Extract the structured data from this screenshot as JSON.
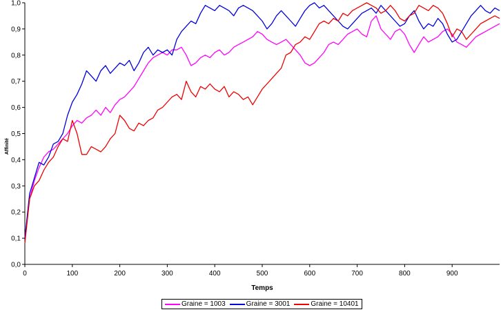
{
  "chart_data": {
    "type": "line",
    "title": "",
    "xlabel": "Temps",
    "ylabel": "Affinité",
    "xlim": [
      0,
      1000
    ],
    "ylim": [
      0,
      1
    ],
    "x_ticks": [
      0,
      100,
      200,
      300,
      400,
      500,
      600,
      700,
      800,
      900
    ],
    "x_tick_labels": [
      "0",
      "100",
      "200",
      "300",
      "400",
      "500",
      "600",
      "700",
      "800",
      "900"
    ],
    "y_ticks": [
      0,
      0.1,
      0.2,
      0.3,
      0.4,
      0.5,
      0.6,
      0.7,
      0.8,
      0.9,
      1.0
    ],
    "y_tick_labels": [
      "0,0",
      "0,1",
      "0,2",
      "0,3",
      "0,4",
      "0,5",
      "0,6",
      "0,7",
      "0,8",
      "0,9",
      "1,0"
    ],
    "grid": false,
    "legend_position": "bottom",
    "series": [
      {
        "name": "Graine = 1003",
        "color": "#ff00ff",
        "x": [
          0,
          10,
          20,
          30,
          40,
          50,
          60,
          70,
          80,
          90,
          100,
          110,
          120,
          130,
          140,
          150,
          160,
          170,
          180,
          190,
          200,
          210,
          220,
          230,
          240,
          250,
          260,
          270,
          280,
          290,
          300,
          310,
          320,
          330,
          340,
          350,
          360,
          370,
          380,
          390,
          400,
          410,
          420,
          430,
          440,
          450,
          460,
          470,
          480,
          490,
          500,
          510,
          520,
          530,
          540,
          550,
          560,
          570,
          580,
          590,
          600,
          610,
          620,
          630,
          640,
          650,
          660,
          670,
          680,
          690,
          700,
          710,
          720,
          730,
          740,
          750,
          760,
          770,
          780,
          790,
          800,
          810,
          820,
          830,
          840,
          850,
          860,
          870,
          880,
          890,
          900,
          910,
          920,
          930,
          940,
          950,
          960,
          970,
          980,
          990,
          1000
        ],
        "values": [
          0.1,
          0.25,
          0.32,
          0.37,
          0.41,
          0.43,
          0.44,
          0.46,
          0.48,
          0.5,
          0.53,
          0.55,
          0.54,
          0.56,
          0.57,
          0.59,
          0.57,
          0.6,
          0.58,
          0.61,
          0.63,
          0.64,
          0.66,
          0.68,
          0.71,
          0.74,
          0.77,
          0.79,
          0.8,
          0.81,
          0.8,
          0.82,
          0.82,
          0.83,
          0.8,
          0.76,
          0.77,
          0.79,
          0.8,
          0.79,
          0.81,
          0.82,
          0.8,
          0.81,
          0.83,
          0.84,
          0.85,
          0.86,
          0.87,
          0.89,
          0.88,
          0.86,
          0.85,
          0.84,
          0.85,
          0.86,
          0.84,
          0.82,
          0.8,
          0.77,
          0.76,
          0.77,
          0.79,
          0.81,
          0.84,
          0.85,
          0.84,
          0.86,
          0.88,
          0.89,
          0.9,
          0.88,
          0.87,
          0.93,
          0.95,
          0.9,
          0.88,
          0.86,
          0.89,
          0.9,
          0.88,
          0.84,
          0.81,
          0.84,
          0.87,
          0.85,
          0.86,
          0.87,
          0.89,
          0.9,
          0.88,
          0.85,
          0.84,
          0.83,
          0.85,
          0.87,
          0.88,
          0.89,
          0.9,
          0.91,
          0.92
        ]
      },
      {
        "name": "Graine = 3001",
        "color": "#0000dd",
        "x": [
          0,
          10,
          20,
          30,
          40,
          50,
          60,
          70,
          80,
          90,
          100,
          110,
          120,
          130,
          140,
          150,
          160,
          170,
          180,
          190,
          200,
          210,
          220,
          230,
          240,
          250,
          260,
          270,
          280,
          290,
          300,
          310,
          320,
          330,
          340,
          350,
          360,
          370,
          380,
          390,
          400,
          410,
          420,
          430,
          440,
          450,
          460,
          470,
          480,
          490,
          500,
          510,
          520,
          530,
          540,
          550,
          560,
          570,
          580,
          590,
          600,
          610,
          620,
          630,
          640,
          650,
          660,
          670,
          680,
          690,
          700,
          710,
          720,
          730,
          740,
          750,
          760,
          770,
          780,
          790,
          800,
          810,
          820,
          830,
          840,
          850,
          860,
          870,
          880,
          890,
          900,
          910,
          920,
          930,
          940,
          950,
          960,
          970,
          980,
          990,
          1000
        ],
        "values": [
          0.1,
          0.27,
          0.33,
          0.39,
          0.38,
          0.41,
          0.46,
          0.47,
          0.5,
          0.57,
          0.62,
          0.65,
          0.69,
          0.74,
          0.72,
          0.7,
          0.74,
          0.76,
          0.73,
          0.75,
          0.77,
          0.76,
          0.78,
          0.74,
          0.77,
          0.81,
          0.83,
          0.8,
          0.82,
          0.81,
          0.82,
          0.8,
          0.86,
          0.89,
          0.91,
          0.93,
          0.92,
          0.96,
          0.99,
          0.98,
          0.97,
          0.99,
          0.98,
          0.97,
          0.95,
          0.98,
          0.99,
          0.98,
          0.97,
          0.95,
          0.93,
          0.9,
          0.92,
          0.95,
          0.97,
          0.95,
          0.93,
          0.91,
          0.94,
          0.97,
          0.99,
          1.0,
          0.98,
          0.99,
          0.97,
          0.95,
          0.93,
          0.91,
          0.9,
          0.92,
          0.94,
          0.96,
          0.97,
          0.98,
          0.96,
          0.99,
          0.97,
          0.95,
          0.93,
          0.91,
          0.92,
          0.95,
          0.97,
          0.93,
          0.9,
          0.92,
          0.91,
          0.94,
          0.92,
          0.88,
          0.85,
          0.86,
          0.89,
          0.92,
          0.95,
          0.97,
          0.99,
          0.97,
          0.96,
          0.98,
          0.97
        ]
      },
      {
        "name": "Graine = 10401",
        "color": "#ee0000",
        "x": [
          0,
          10,
          20,
          30,
          40,
          50,
          60,
          70,
          80,
          90,
          100,
          110,
          120,
          130,
          140,
          150,
          160,
          170,
          180,
          190,
          200,
          210,
          220,
          230,
          240,
          250,
          260,
          270,
          280,
          290,
          300,
          310,
          320,
          330,
          340,
          350,
          360,
          370,
          380,
          390,
          400,
          410,
          420,
          430,
          440,
          450,
          460,
          470,
          480,
          490,
          500,
          510,
          520,
          530,
          540,
          550,
          560,
          570,
          580,
          590,
          600,
          610,
          620,
          630,
          640,
          650,
          660,
          670,
          680,
          690,
          700,
          710,
          720,
          730,
          740,
          750,
          760,
          770,
          780,
          790,
          800,
          810,
          820,
          830,
          840,
          850,
          860,
          870,
          880,
          890,
          900,
          910,
          920,
          930,
          940,
          950,
          960,
          970,
          980,
          990,
          1000
        ],
        "values": [
          0.08,
          0.25,
          0.3,
          0.32,
          0.36,
          0.39,
          0.41,
          0.45,
          0.48,
          0.47,
          0.55,
          0.5,
          0.42,
          0.42,
          0.45,
          0.44,
          0.43,
          0.45,
          0.48,
          0.5,
          0.57,
          0.55,
          0.52,
          0.51,
          0.54,
          0.53,
          0.55,
          0.56,
          0.59,
          0.6,
          0.62,
          0.64,
          0.65,
          0.63,
          0.7,
          0.66,
          0.64,
          0.68,
          0.67,
          0.69,
          0.67,
          0.66,
          0.68,
          0.64,
          0.66,
          0.65,
          0.63,
          0.64,
          0.61,
          0.64,
          0.67,
          0.69,
          0.71,
          0.73,
          0.75,
          0.8,
          0.81,
          0.84,
          0.85,
          0.87,
          0.86,
          0.89,
          0.92,
          0.93,
          0.92,
          0.94,
          0.93,
          0.96,
          0.95,
          0.97,
          0.98,
          0.99,
          1.0,
          0.99,
          0.98,
          0.96,
          0.97,
          0.99,
          0.97,
          0.94,
          0.93,
          0.95,
          0.96,
          0.99,
          0.98,
          0.97,
          0.99,
          0.98,
          0.96,
          0.92,
          0.87,
          0.9,
          0.89,
          0.86,
          0.88,
          0.9,
          0.92,
          0.93,
          0.94,
          0.95,
          0.94
        ]
      }
    ]
  }
}
